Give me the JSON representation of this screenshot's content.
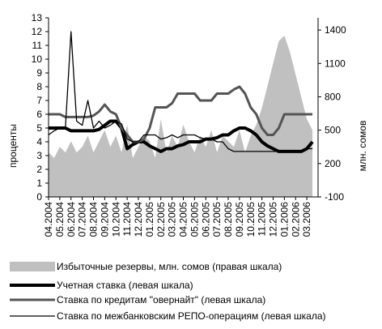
{
  "chart_data": {
    "type": "line",
    "y_label": "проценты",
    "y2_label": "млн. сомов",
    "x": [
      0,
      0.5,
      1,
      1.5,
      2,
      2.5,
      3,
      3.5,
      4,
      4.5,
      5,
      5.5,
      6,
      6.5,
      7,
      7.5,
      8,
      8.5,
      9,
      9.5,
      10,
      10.5,
      11,
      11.5,
      12,
      12.5,
      13,
      13.5,
      14,
      14.5,
      15,
      15.5,
      16,
      16.5,
      17,
      17.5,
      18,
      18.5,
      19,
      19.5,
      20,
      20.5,
      21,
      21.5,
      22,
      22.5,
      23,
      23.5
    ],
    "xlim": [
      0,
      24
    ],
    "xticks": [
      {
        "value": 0,
        "label": "04.2004"
      },
      {
        "value": 1,
        "label": "05.2004"
      },
      {
        "value": 2,
        "label": "06.2004"
      },
      {
        "value": 3,
        "label": "07.2004"
      },
      {
        "value": 4,
        "label": "08.2004"
      },
      {
        "value": 5,
        "label": "09.2004"
      },
      {
        "value": 6,
        "label": "10.2004"
      },
      {
        "value": 7,
        "label": "11.2004"
      },
      {
        "value": 8,
        "label": "12.2004"
      },
      {
        "value": 9,
        "label": "01.2005"
      },
      {
        "value": 10,
        "label": "02.2005"
      },
      {
        "value": 11,
        "label": "03.2005"
      },
      {
        "value": 12,
        "label": "04.2005"
      },
      {
        "value": 13,
        "label": "05.2005"
      },
      {
        "value": 14,
        "label": "06.2005"
      },
      {
        "value": 15,
        "label": "07.2005"
      },
      {
        "value": 16,
        "label": "08.2005"
      },
      {
        "value": 17,
        "label": "09.2005"
      },
      {
        "value": 18,
        "label": "10.2005"
      },
      {
        "value": 19,
        "label": "11.2005"
      },
      {
        "value": 20,
        "label": "12.2005"
      },
      {
        "value": 21,
        "label": "01.2006"
      },
      {
        "value": 22,
        "label": "02.2006"
      },
      {
        "value": 23,
        "label": "03.2006"
      }
    ],
    "ylim": [
      0,
      13
    ],
    "yticks": [
      0,
      1,
      2,
      3,
      4,
      5,
      6,
      7,
      8,
      9,
      10,
      11,
      12,
      13
    ],
    "y2lim": [
      -100,
      1510
    ],
    "y2ticks": [
      -100,
      200,
      500,
      800,
      1100,
      1400
    ],
    "series": [
      {
        "name": "Избыточные резервы, млн. сомов (правая шкала)",
        "color": "#c0c0c0",
        "kind": "area",
        "axis": "y2",
        "values": [
          300,
          250,
          350,
          300,
          400,
          300,
          350,
          450,
          300,
          400,
          500,
          350,
          450,
          300,
          550,
          250,
          350,
          450,
          400,
          250,
          600,
          300,
          450,
          350,
          550,
          400,
          300,
          450,
          350,
          500,
          300,
          450,
          400,
          350,
          500,
          300,
          450,
          550,
          700,
          900,
          1100,
          1300,
          1350,
          1200,
          1000,
          800,
          600,
          500
        ]
      },
      {
        "name": "Учетная ставка (левая шкала)",
        "color": "#000000",
        "width": 4,
        "values": [
          5,
          5,
          5,
          5,
          4.8,
          4.8,
          4.8,
          4.8,
          4.8,
          4.9,
          5.2,
          5.5,
          5.5,
          5,
          3.5,
          3.8,
          4,
          4,
          3.7,
          3.5,
          3.3,
          3.5,
          3.5,
          3.7,
          3.8,
          4,
          4,
          4,
          4.2,
          4.2,
          4.3,
          4.5,
          4.5,
          4.8,
          5,
          5,
          4.8,
          4.5,
          4,
          3.7,
          3.5,
          3.3,
          3.3,
          3.3,
          3.3,
          3.3,
          3.5,
          4
        ]
      },
      {
        "name": "Ставка по кредитам \"овернайт\" (левая шкала)",
        "color": "#555555",
        "width": 3,
        "values": [
          6,
          6,
          6,
          5.8,
          5.8,
          5.8,
          5.8,
          5.8,
          5.9,
          6.2,
          6.7,
          6.2,
          6,
          5,
          4.5,
          4,
          4,
          4.2,
          5,
          6.5,
          6.5,
          6.5,
          6.8,
          7.5,
          7.5,
          7.5,
          7.5,
          7,
          7,
          7,
          7.5,
          7.5,
          7.5,
          7.8,
          8,
          7.5,
          6.5,
          6,
          5,
          4.5,
          4.5,
          5,
          6,
          6,
          6,
          6,
          6,
          6
        ]
      },
      {
        "name": "Ставка по межбанковским РЕПО-операциям (левая шкала)",
        "color": "#000000",
        "width": 1.3,
        "values": [
          4.5,
          4.8,
          5,
          5,
          12,
          5.5,
          5.2,
          7,
          5,
          5.5,
          5,
          5.2,
          5.5,
          5.3,
          4.2,
          4,
          4,
          4.5,
          4.5,
          4.5,
          4.2,
          4.3,
          4.5,
          4.3,
          4.5,
          4.5,
          4.5,
          4.3,
          4.2,
          4.2,
          4,
          4,
          3.5,
          3.3,
          3.3,
          3.3,
          3.3,
          3.3,
          3.3,
          3.3,
          3.3,
          3.3,
          3.3,
          3.3,
          3.3,
          3.3,
          3.5,
          3.5
        ]
      }
    ]
  }
}
